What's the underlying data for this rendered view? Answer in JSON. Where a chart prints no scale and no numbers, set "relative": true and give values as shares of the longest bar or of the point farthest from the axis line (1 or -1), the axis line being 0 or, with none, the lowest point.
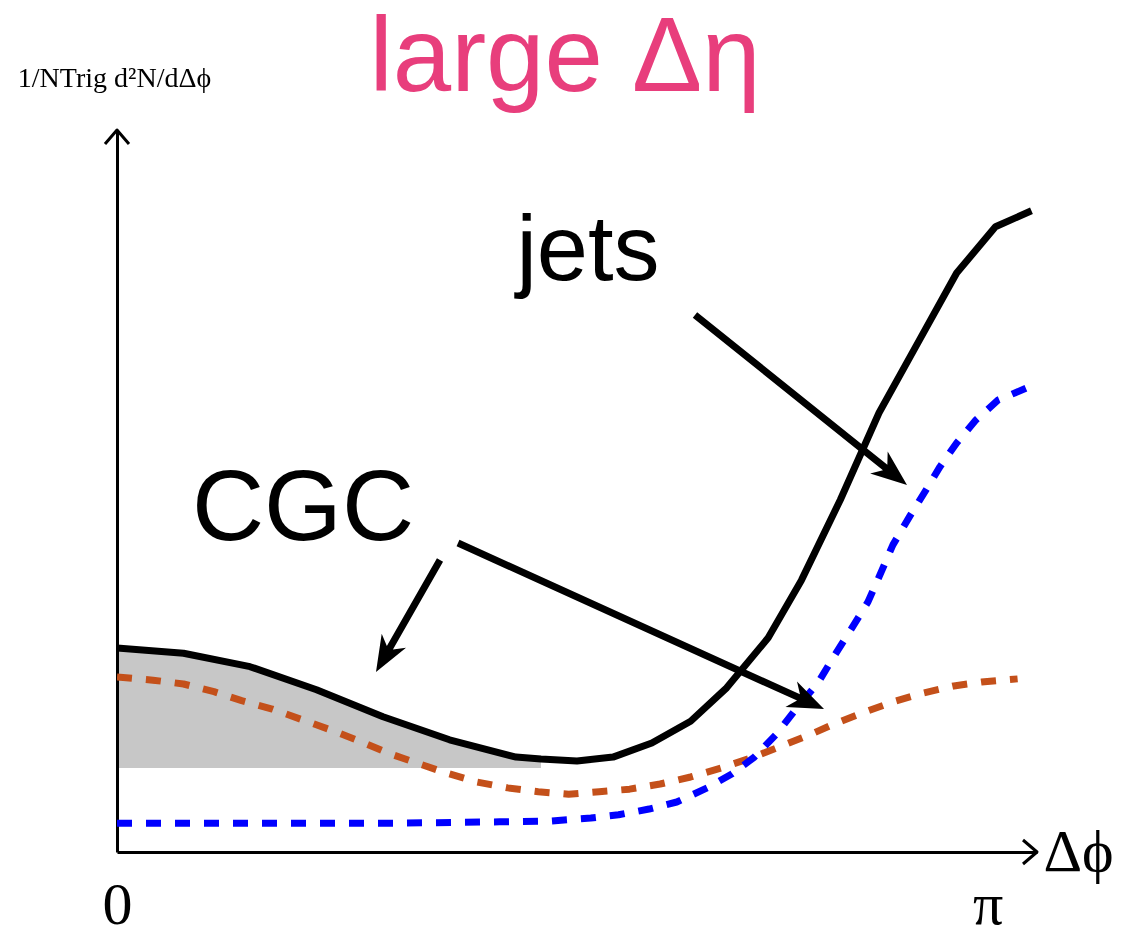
{
  "chart_data": {
    "type": "line",
    "title": "large Δη",
    "xlabel": "Δϕ",
    "ylabel": "1/NTrig d²N/dΔϕ",
    "relative": true,
    "xlim": [
      0,
      3.32
    ],
    "xticks": [
      0,
      {
        "value": 3.1416,
        "label": "π"
      }
    ],
    "series": [
      {
        "color": "#c4501a",
        "line_style": "dashed",
        "x": [
          0,
          0.13,
          0.24,
          0.35,
          0.45,
          0.56,
          0.67,
          0.78,
          0.88,
          0.98,
          1.08,
          1.19,
          1.3,
          1.41,
          1.52,
          1.63,
          1.74,
          1.85,
          1.96,
          2.07,
          2.18,
          2.29,
          2.39,
          2.49,
          2.59,
          2.69,
          2.8,
          2.91,
          3.02,
          3.12,
          3.25
        ],
        "values": [
          0.273,
          0.268,
          0.262,
          0.25,
          0.236,
          0.223,
          0.206,
          0.189,
          0.172,
          0.154,
          0.139,
          0.123,
          0.109,
          0.1,
          0.094,
          0.09,
          0.094,
          0.098,
          0.106,
          0.117,
          0.131,
          0.147,
          0.164,
          0.181,
          0.2,
          0.217,
          0.234,
          0.248,
          0.259,
          0.265,
          0.27
        ]
      },
      {
        "color": "#0000ff",
        "line_style": "dashed",
        "x": [
          0,
          0.48,
          1.02,
          1.38,
          1.56,
          1.71,
          1.81,
          1.92,
          2.02,
          2.13,
          2.22,
          2.3,
          2.38,
          2.45,
          2.53,
          2.59,
          2.65,
          2.71,
          2.75,
          2.8,
          2.86,
          2.92,
          2.97,
          3.03,
          3.1,
          3.18,
          3.29
        ],
        "values": [
          0.045,
          0.045,
          0.045,
          0.047,
          0.048,
          0.053,
          0.058,
          0.067,
          0.078,
          0.1,
          0.122,
          0.148,
          0.184,
          0.223,
          0.264,
          0.307,
          0.348,
          0.39,
          0.429,
          0.479,
          0.523,
          0.565,
          0.601,
          0.638,
          0.674,
          0.705,
          0.725
        ]
      },
      {
        "color": "#000000",
        "line_style": "solid",
        "x": [
          0,
          0.24,
          0.48,
          0.72,
          0.96,
          1.2,
          1.44,
          1.53,
          1.66,
          1.79,
          1.93,
          2.07,
          2.2,
          2.35,
          2.47,
          2.61,
          2.75,
          2.89,
          3.03,
          3.17,
          3.3
        ],
        "values": [
          0.318,
          0.31,
          0.289,
          0.253,
          0.211,
          0.175,
          0.148,
          0.145,
          0.142,
          0.148,
          0.17,
          0.204,
          0.256,
          0.334,
          0.424,
          0.549,
          0.685,
          0.794,
          0.903,
          0.975,
          1.0
        ],
        "lower": [
          0.131,
          0.131,
          0.131,
          0.131,
          0.131,
          0.131,
          0.131,
          0.131,
          null,
          null,
          null,
          null,
          null,
          null,
          null,
          null,
          null,
          null,
          null,
          null,
          null
        ],
        "upper": [
          0.318,
          0.31,
          0.289,
          0.253,
          0.211,
          0.175,
          0.148,
          0.145,
          null,
          null,
          null,
          null,
          null,
          null,
          null,
          null,
          null,
          null,
          null,
          null,
          null
        ]
      }
    ],
    "annotations": [
      "jets",
      "CGC"
    ]
  }
}
